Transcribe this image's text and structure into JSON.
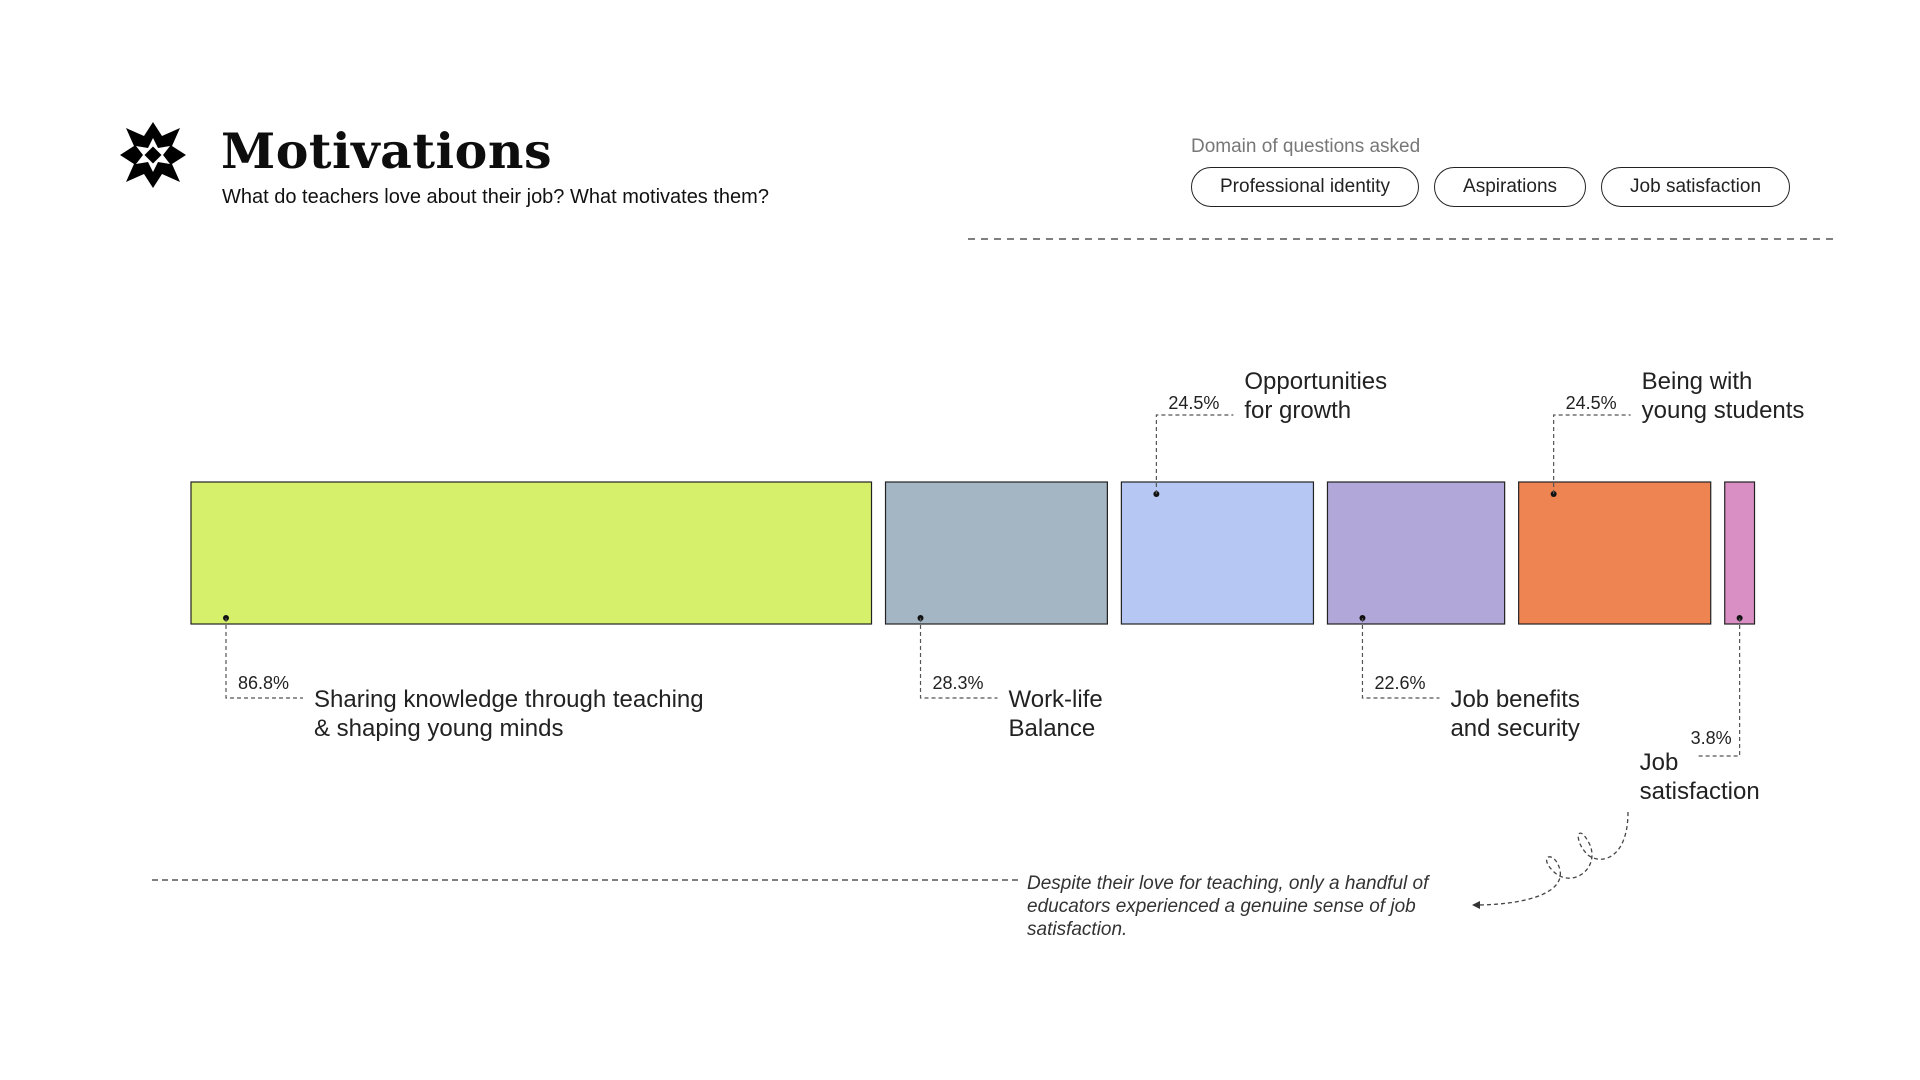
{
  "header": {
    "title": "Motivations",
    "subtitle": "What do teachers love about their job? What motivates them?",
    "logo_icon": "star-burst-logo-icon"
  },
  "domain_filter": {
    "label": "Domain of questions asked",
    "options": [
      "Professional identity",
      "Aspirations",
      "Job satisfaction"
    ]
  },
  "chart_data": {
    "type": "bar",
    "orientation": "horizontal-blocks",
    "categories": [
      "Sharing knowledge through teaching & shaping young minds",
      "Work-life Balance",
      "Opportunities for growth",
      "Job benefits and security",
      "Being with young students",
      "Job satisfaction"
    ],
    "values": [
      86.8,
      28.3,
      24.5,
      22.6,
      24.5,
      3.8
    ],
    "value_labels": [
      "86.8%",
      "28.3%",
      "24.5%",
      "22.6%",
      "24.5%",
      "3.8%"
    ],
    "label_lines": [
      [
        "Sharing knowledge through teaching",
        "& shaping young minds"
      ],
      [
        "Work-life",
        "Balance"
      ],
      [
        "Opportunities",
        "for growth"
      ],
      [
        "Job benefits",
        "and security"
      ],
      [
        "Being with",
        "young students"
      ],
      [
        "Job",
        "satisfaction"
      ]
    ],
    "label_side": [
      "below",
      "below",
      "above",
      "below",
      "above",
      "below"
    ],
    "colors": [
      "#d7f06c",
      "#a4b5c3",
      "#b7c7f4",
      "#b1a7d8",
      "#ef8453",
      "#d98fc4"
    ]
  },
  "annotation": {
    "text": "Despite their love for teaching, only a handful of educators experienced a genuine sense of job satisfaction."
  }
}
